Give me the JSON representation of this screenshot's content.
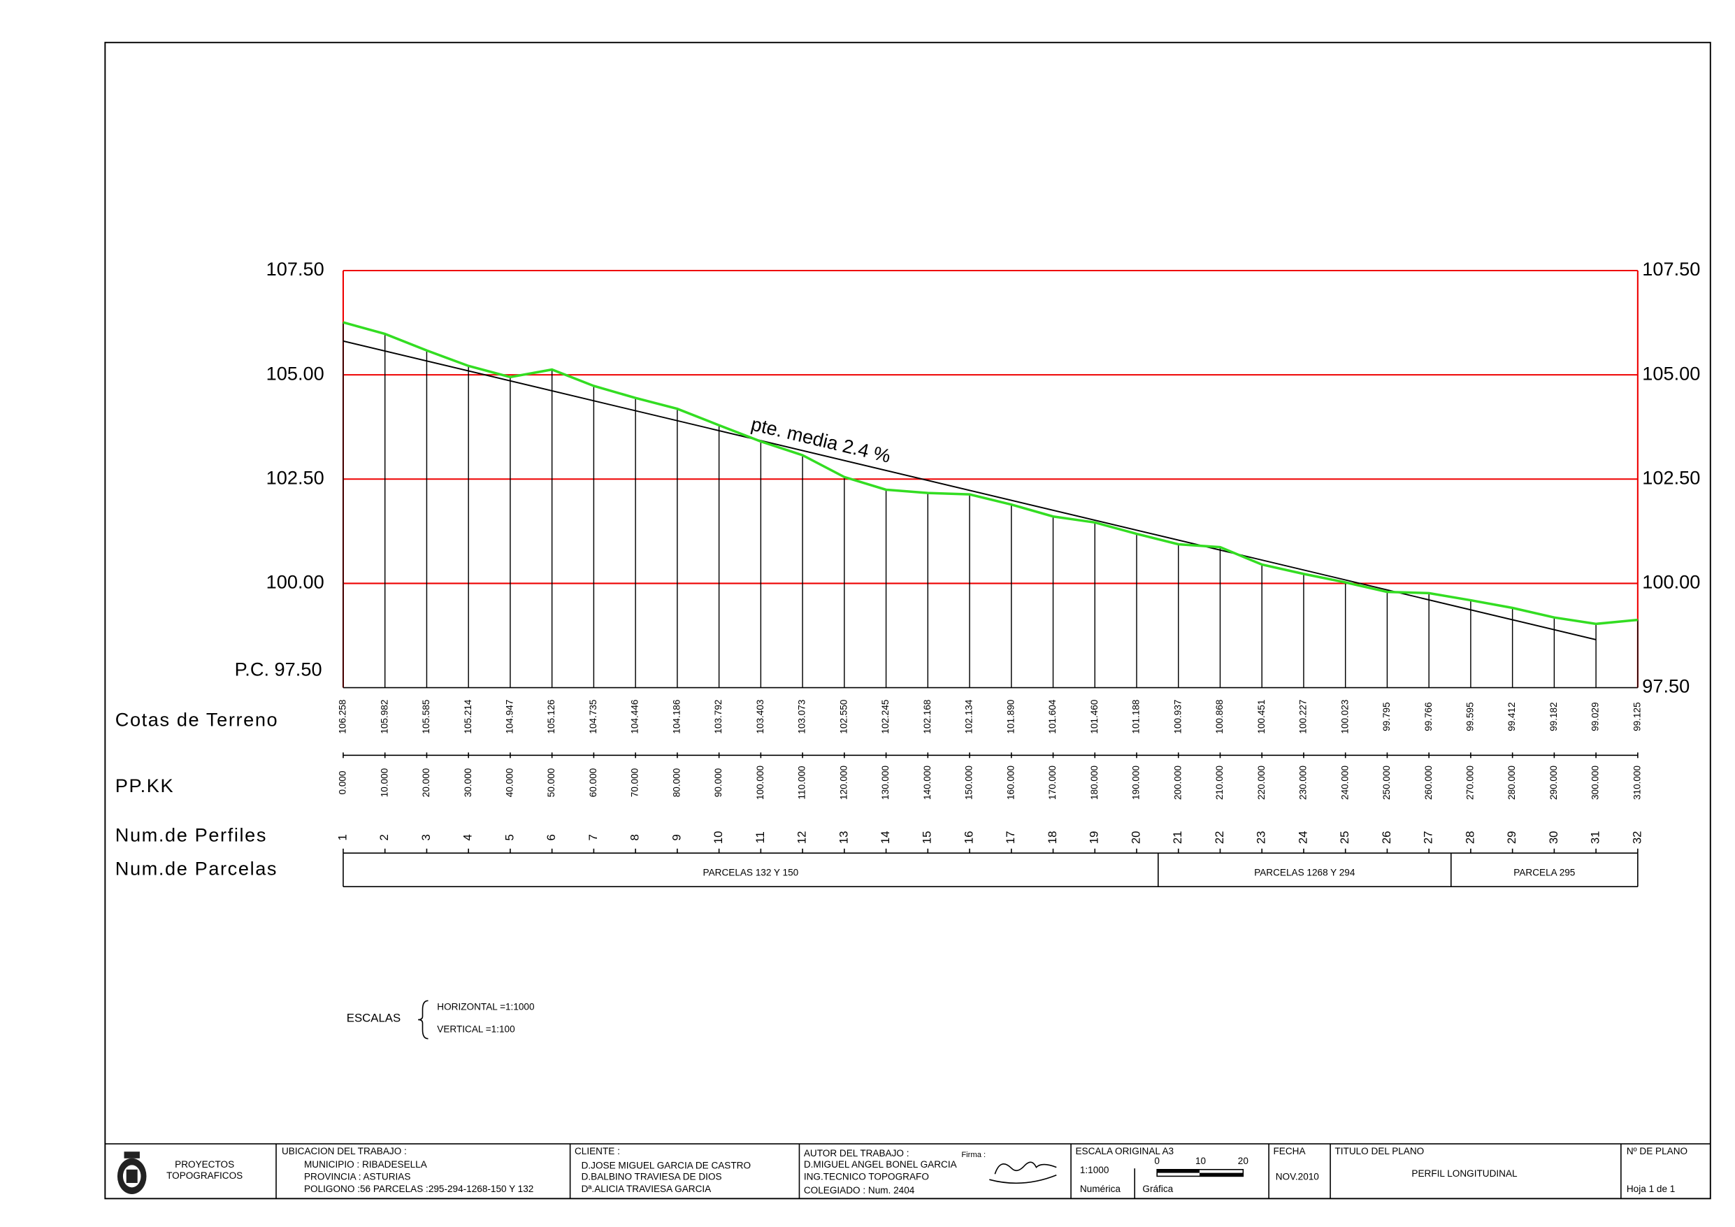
{
  "chart_data": {
    "type": "line",
    "x": [
      0,
      10,
      20,
      30,
      40,
      50,
      60,
      70,
      80,
      90,
      100,
      110,
      120,
      130,
      140,
      150,
      160,
      170,
      180,
      190,
      200,
      210,
      220,
      230,
      240,
      250,
      260,
      270,
      280,
      290,
      300,
      310
    ],
    "values": [
      106.258,
      105.982,
      105.585,
      105.214,
      104.947,
      105.126,
      104.735,
      104.446,
      104.186,
      103.792,
      103.403,
      103.073,
      102.55,
      102.245,
      102.168,
      102.134,
      101.89,
      101.604,
      101.46,
      101.188,
      100.937,
      100.868,
      100.451,
      100.227,
      100.023,
      99.795,
      99.766,
      99.595,
      99.412,
      99.182,
      99.029,
      99.125
    ],
    "value_labels": [
      "106.258",
      "105.982",
      "105.585",
      "105.214",
      "104.947",
      "105.126",
      "104.735",
      "104.446",
      "104.186",
      "103.792",
      "103.403",
      "103.073",
      "102.550",
      "102.245",
      "102.168",
      "102.134",
      "101.890",
      "101.604",
      "101.460",
      "101.188",
      "100.937",
      "100.868",
      "100.451",
      "100.227",
      "100.023",
      "99.795",
      "99.766",
      "99.595",
      "99.412",
      "99.182",
      "99.029",
      "99.125"
    ],
    "color": "#33dd22",
    "xlim": [
      0,
      310
    ],
    "xticks": [
      {
        "value": 0,
        "label": "0.000"
      },
      {
        "value": 10,
        "label": "10.000"
      },
      {
        "value": 20,
        "label": "20.000"
      },
      {
        "value": 30,
        "label": "30.000"
      },
      {
        "value": 40,
        "label": "40.000"
      },
      {
        "value": 50,
        "label": "50.000"
      },
      {
        "value": 60,
        "label": "60.000"
      },
      {
        "value": 70,
        "label": "70.000"
      },
      {
        "value": 80,
        "label": "80.000"
      },
      {
        "value": 90,
        "label": "90.000"
      },
      {
        "value": 100,
        "label": "100.000"
      },
      {
        "value": 110,
        "label": "110.000"
      },
      {
        "value": 120,
        "label": "120.000"
      },
      {
        "value": 130,
        "label": "130.000"
      },
      {
        "value": 140,
        "label": "140.000"
      },
      {
        "value": 150,
        "label": "150.000"
      },
      {
        "value": 160,
        "label": "160.000"
      },
      {
        "value": 170,
        "label": "170.000"
      },
      {
        "value": 180,
        "label": "180.000"
      },
      {
        "value": 190,
        "label": "190.000"
      },
      {
        "value": 200,
        "label": "200.000"
      },
      {
        "value": 210,
        "label": "210.000"
      },
      {
        "value": 220,
        "label": "220.000"
      },
      {
        "value": 230,
        "label": "230.000"
      },
      {
        "value": 240,
        "label": "240.000"
      },
      {
        "value": 250,
        "label": "250.000"
      },
      {
        "value": 260,
        "label": "260.000"
      },
      {
        "value": 270,
        "label": "270.000"
      },
      {
        "value": 280,
        "label": "280.000"
      },
      {
        "value": 290,
        "label": "290.000"
      },
      {
        "value": 300,
        "label": "300.000"
      },
      {
        "value": 310,
        "label": "310.000"
      }
    ],
    "ylim": [
      97.5,
      107.5
    ],
    "yticks": [
      {
        "value": 97.5,
        "label": "97.50"
      },
      {
        "value": 100,
        "label": "100.00"
      },
      {
        "value": 102.5,
        "label": "102.50"
      },
      {
        "value": 105,
        "label": "105.00"
      },
      {
        "value": 107.5,
        "label": "107.50"
      }
    ],
    "grid_color": "#ee0000",
    "datum_label": "P.C. 97.50",
    "trend": {
      "label": "pte. media 2.4 %",
      "x": [
        0,
        300
      ],
      "values": [
        105.81,
        98.65
      ]
    },
    "row_labels": [
      "Cotas de Terreno",
      "PP.KK",
      "Num.de Perfiles",
      "Num.de Parcelas"
    ],
    "profiles": [
      1,
      2,
      3,
      4,
      5,
      6,
      7,
      8,
      9,
      10,
      11,
      12,
      13,
      14,
      15,
      16,
      17,
      18,
      19,
      20,
      21,
      22,
      23,
      24,
      25,
      26,
      27,
      28,
      29,
      30,
      31,
      32
    ],
    "parcels": [
      "PARCELAS 132 Y 150",
      "PARCELAS 1268 Y 294",
      "PARCELA 295"
    ]
  },
  "escalas": {
    "title": "ESCALAS",
    "horizontal": "HORIZONTAL  =1:1000",
    "vertical": "VERTICAL    =1:100"
  },
  "title_block": {
    "company": [
      "PROYECTOS",
      "TOPOGRAFICOS"
    ],
    "location": [
      "UBICACION DEL TRABAJO :",
      "MUNICIPIO : RIBADESELLA",
      "PROVINCIA : ASTURIAS",
      "POLIGONO :56 PARCELAS :295-294-1268-150 Y 132"
    ],
    "client": [
      "CLIENTE :",
      "D.JOSE MIGUEL GARCIA DE CASTRO",
      "D.BALBINO TRAVIESA DE DIOS",
      "Dª.ALICIA TRAVIESA GARCIA"
    ],
    "author": [
      "AUTOR DEL TRABAJO :",
      "D.MIGUEL ANGEL BONEL GARCIA",
      "ING.TECNICO TOPOGRAFO",
      "COLEGIADO :  Num. 2404"
    ],
    "signature": "Firma :",
    "scale": {
      "title": "ESCALA ORIGINAL A3",
      "numeric": "1:1000",
      "numeric_label": "Numérica",
      "graphic_label": "Gráfica",
      "bar": [
        "0",
        "10",
        "20"
      ]
    },
    "date": {
      "title": "FECHA",
      "value": "NOV.2010"
    },
    "plan_title": {
      "title": "TITULO DEL PLANO",
      "value": "PERFIL LONGITUDINAL"
    },
    "plan_number": {
      "title": "Nº DE PLANO",
      "value": "Hoja  1  de  1"
    }
  }
}
